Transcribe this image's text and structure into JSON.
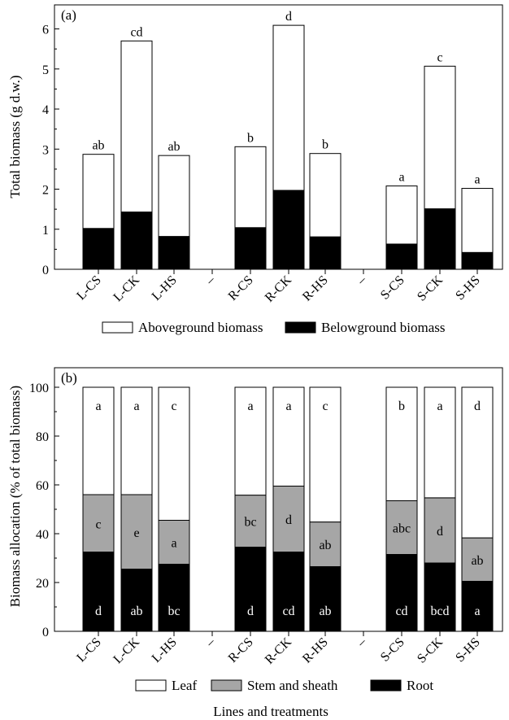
{
  "chart_data": [
    {
      "panel_label": "(a)",
      "type": "bar",
      "stacked": true,
      "ylabel": "Total biomass (g d.w.)",
      "ylim": [
        0,
        6.6
      ],
      "yticks": [
        "0",
        "1",
        "2",
        "3",
        "4",
        "5",
        "6"
      ],
      "categories": [
        "L-CS",
        "L-CK",
        "L-HS",
        "–",
        "R-CS",
        "R-CK",
        "R-HS",
        "–",
        "S-CS",
        "S-CK",
        "S-HS"
      ],
      "series": [
        {
          "name": "Belowground biomass",
          "color": "#000000",
          "values": [
            1.02,
            1.43,
            0.82,
            null,
            1.04,
            1.97,
            0.81,
            null,
            0.63,
            1.51,
            0.42
          ]
        },
        {
          "name": "Aboveground biomass",
          "color": "#ffffff",
          "values": [
            1.85,
            4.27,
            2.02,
            null,
            2.02,
            4.12,
            2.08,
            null,
            1.45,
            3.56,
            1.6
          ]
        }
      ],
      "totals": [
        2.87,
        5.7,
        2.84,
        null,
        3.06,
        6.09,
        2.89,
        null,
        2.08,
        5.07,
        2.02
      ],
      "top_labels": [
        "ab",
        "cd",
        "ab",
        "",
        "b",
        "d",
        "b",
        "",
        "a",
        "c",
        "a"
      ],
      "legend": [
        "Aboveground biomass",
        "Belowground biomass"
      ],
      "legend_position": "bottom",
      "grid": false
    },
    {
      "panel_label": "(b)",
      "type": "bar",
      "stacked": true,
      "ylabel": "Biomass allocation (% of total biomass)",
      "ylim": [
        0,
        108
      ],
      "yticks": [
        "0",
        "20",
        "40",
        "60",
        "80",
        "100"
      ],
      "categories": [
        "L-CS",
        "L-CK",
        "L-HS",
        "–",
        "R-CS",
        "R-CK",
        "R-HS",
        "–",
        "S-CS",
        "S-CK",
        "S-HS"
      ],
      "series": [
        {
          "name": "Root",
          "color": "#000000",
          "values": [
            32.5,
            25.5,
            27.5,
            null,
            34.5,
            32.5,
            26.5,
            null,
            31.5,
            28,
            20.5
          ],
          "labels": [
            "d",
            "ab",
            "bc",
            "",
            "d",
            "cd",
            "ab",
            "",
            "cd",
            "bcd",
            "a"
          ]
        },
        {
          "name": "Stem and sheath",
          "color": "#a6a6a6",
          "values": [
            23.5,
            30.5,
            18,
            null,
            21.3,
            27,
            18.3,
            null,
            22,
            26.7,
            17.8
          ],
          "labels": [
            "c",
            "e",
            "a",
            "",
            "bc",
            "d",
            "ab",
            "",
            "abc",
            "d",
            "ab"
          ]
        },
        {
          "name": "Leaf",
          "color": "#ffffff",
          "values": [
            44,
            44,
            54.5,
            null,
            44.2,
            40.5,
            55.2,
            null,
            46.5,
            45.3,
            61.7
          ],
          "labels": [
            "a",
            "a",
            "c",
            "",
            "a",
            "a",
            "c",
            "",
            "b",
            "a",
            "d"
          ]
        }
      ],
      "legend": [
        "Leaf",
        "Stem and sheath",
        "Root"
      ],
      "legend_position": "bottom",
      "grid": false,
      "xlabel": "Lines and treatments"
    }
  ]
}
